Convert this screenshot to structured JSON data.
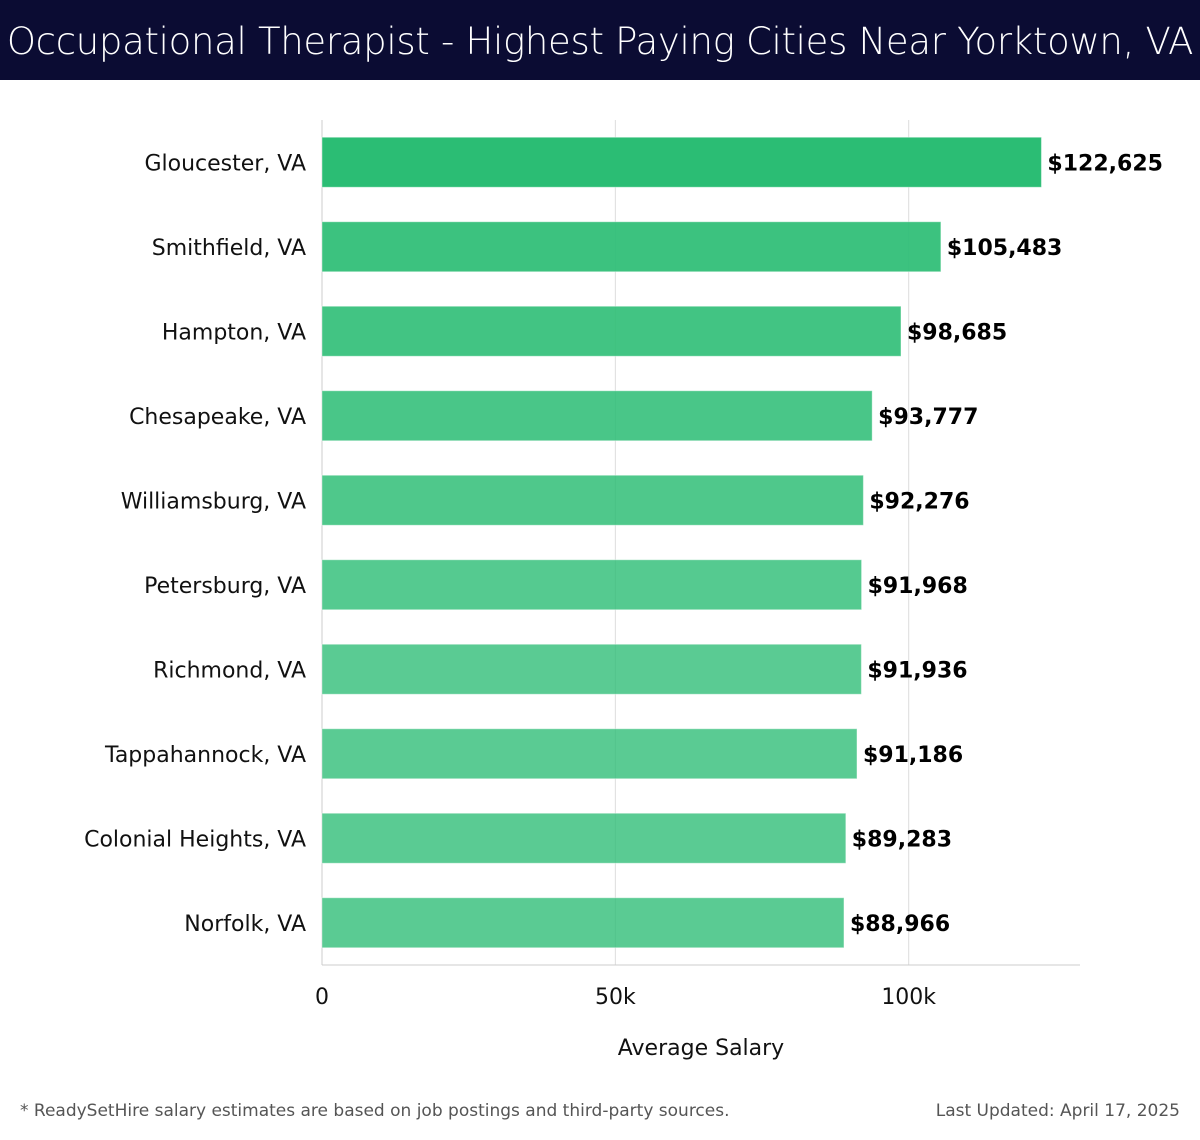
{
  "header": {
    "title": "Occupational Therapist - Highest Paying Cities Near Yorktown, VA"
  },
  "chart_data": {
    "type": "bar",
    "orientation": "horizontal",
    "title": "Occupational Therapist - Highest Paying Cities Near Yorktown, VA",
    "categories": [
      "Gloucester, VA",
      "Smithfield, VA",
      "Hampton, VA",
      "Chesapeake, VA",
      "Williamsburg, VA",
      "Petersburg, VA",
      "Richmond, VA",
      "Tappahannock, VA",
      "Colonial Heights, VA",
      "Norfolk, VA"
    ],
    "values": [
      122625,
      105483,
      98685,
      93777,
      92276,
      91968,
      91936,
      91186,
      89283,
      88966
    ],
    "data_labels": [
      "$122,625",
      "$105,483",
      "$98,685",
      "$93,777",
      "$92,276",
      "$91,968",
      "$91,936",
      "$91,186",
      "$89,283",
      "$88,966"
    ],
    "xlabel": "Average Salary",
    "ylabel": "",
    "xlim": [
      0,
      129200
    ],
    "xticks": [
      0,
      50000,
      100000
    ],
    "xtick_labels": [
      "0",
      "50k",
      "100k"
    ],
    "grid": true,
    "colors": {
      "top": "#2bbd74",
      "bar": "#52cb92",
      "header_bg": "#0b0c33"
    }
  },
  "footer": {
    "note": "* ReadySetHire salary estimates are based on job postings and third-party sources.",
    "updated": "Last Updated: April 17, 2025"
  }
}
